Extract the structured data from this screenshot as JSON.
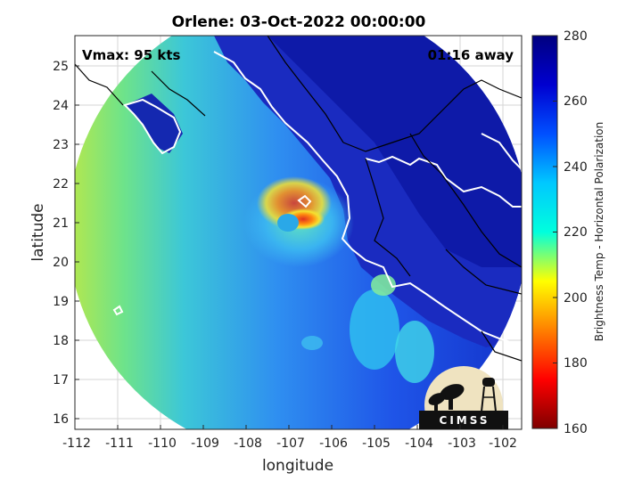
{
  "title": "Orlene: 03-Oct-2022 00:00:00",
  "overlay_left": "Vmax: 95 kts",
  "overlay_right": "01:16 away",
  "axes": {
    "xlabel": "longitude",
    "ylabel": "latitude",
    "xticks": [
      "-112",
      "-111",
      "-110",
      "-109",
      "-108",
      "-107",
      "-106",
      "-105",
      "-104",
      "-103",
      "-102"
    ],
    "yticks": [
      "16",
      "17",
      "18",
      "19",
      "20",
      "21",
      "22",
      "23",
      "24",
      "25"
    ]
  },
  "colorbar": {
    "label": "Brightness Temp - Horizontal Polarization",
    "ticks": [
      "160",
      "180",
      "200",
      "220",
      "240",
      "260",
      "280"
    ],
    "range": [
      160,
      280
    ],
    "colormap": "jet"
  },
  "logo": {
    "text": "CIMSS"
  },
  "colors": {
    "coastline": "#ffffff",
    "land_border": "#000000",
    "grid": "#d0d0d0"
  }
}
